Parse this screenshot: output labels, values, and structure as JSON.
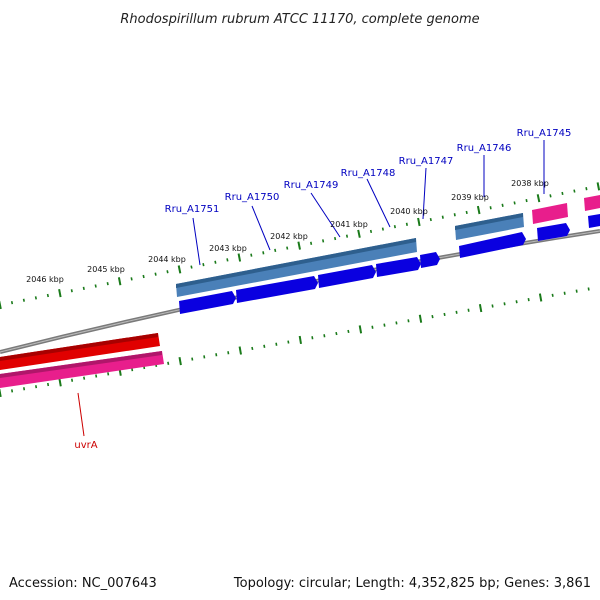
{
  "title": "Rhodospirillum rubrum ATCC 11170, complete genome",
  "footer": {
    "accession": "Accession: NC_007643",
    "summary": "Topology: circular; Length: 4,352,825 bp; Genes: 3,861"
  },
  "colors": {
    "backbone": "#7a7a7a",
    "tick": "#1a7a1a",
    "cds_forward": "#0a00e0",
    "rna_forward": "#4a80b8",
    "pink_gene": "#e81e8c",
    "red_gene": "#e00000",
    "label_blue": "#0000c0",
    "label_red": "#cc0000"
  },
  "ticks": [
    "2046 kbp",
    "2045 kbp",
    "2044 kbp",
    "2043 kbp",
    "2042 kbp",
    "2041 kbp",
    "2040 kbp",
    "2039 kbp",
    "2038 kbp"
  ],
  "gene_labels": [
    {
      "name": "Rru_A1751",
      "color": "label_blue"
    },
    {
      "name": "Rru_A1750",
      "color": "label_blue"
    },
    {
      "name": "Rru_A1749",
      "color": "label_blue"
    },
    {
      "name": "Rru_A1748",
      "color": "label_blue"
    },
    {
      "name": "Rru_A1747",
      "color": "label_blue"
    },
    {
      "name": "Rru_A1746",
      "color": "label_blue"
    },
    {
      "name": "Rru_A1745",
      "color": "label_blue"
    },
    {
      "name": "uvrA",
      "color": "label_red"
    }
  ]
}
